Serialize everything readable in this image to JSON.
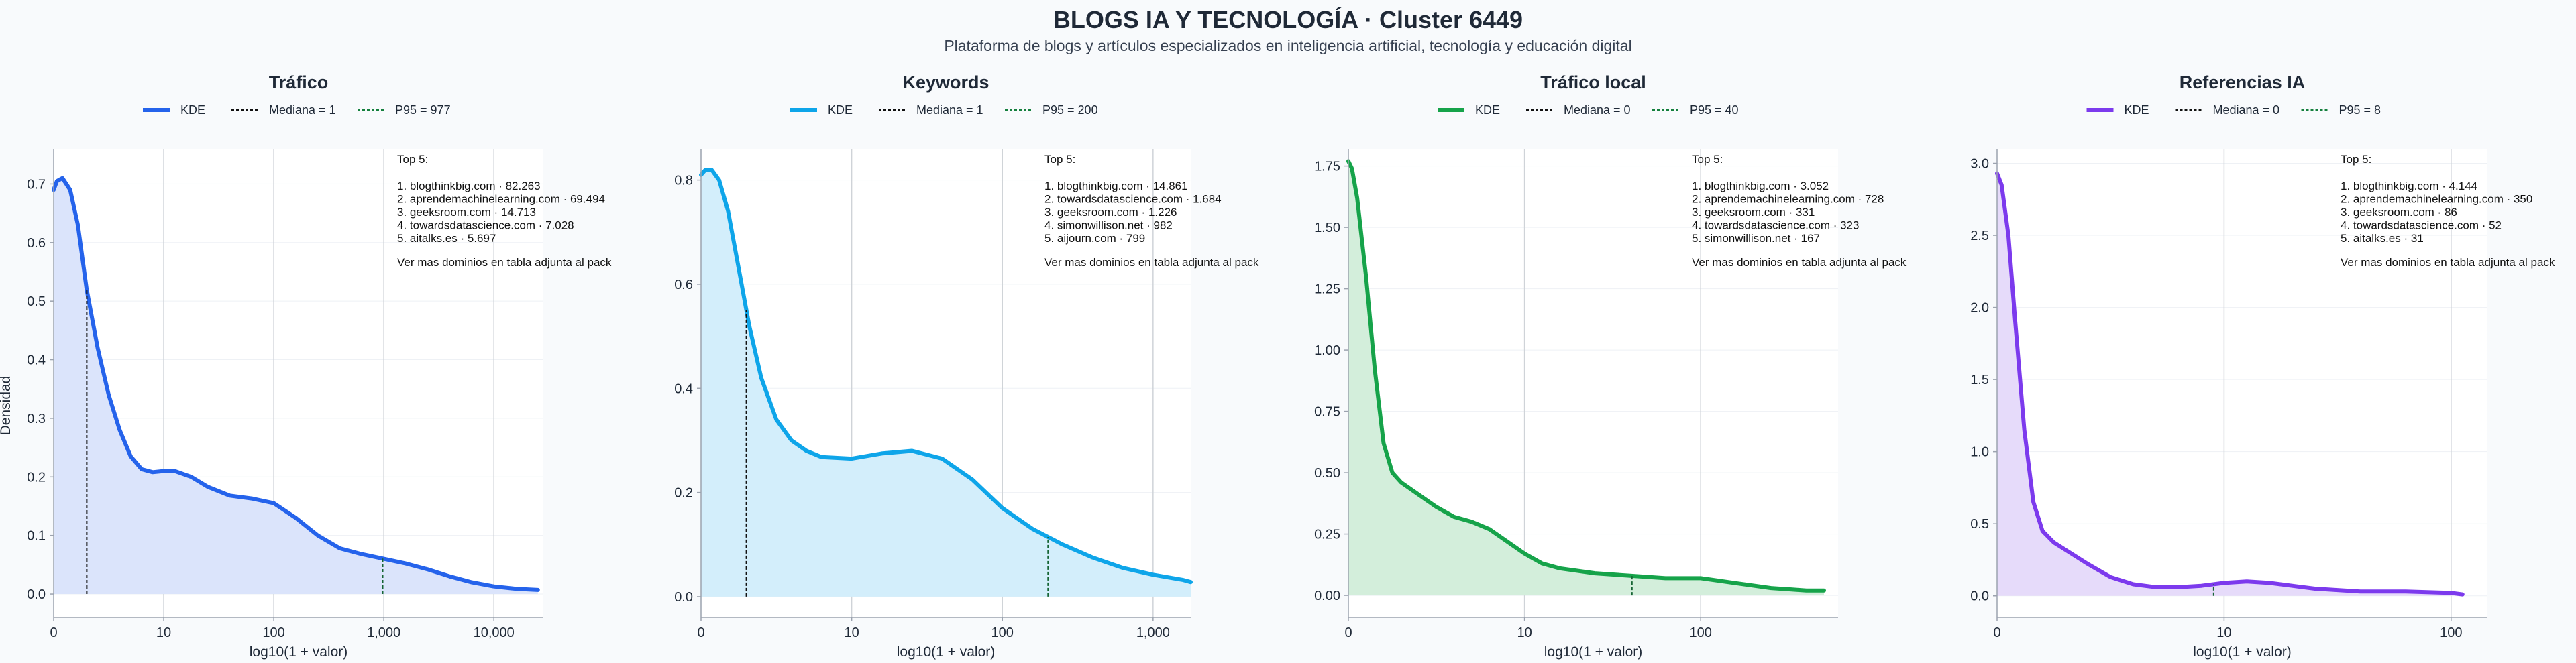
{
  "header": {
    "title": "BLOGS IA Y TECNOLOGÍA · Cluster 6449",
    "subtitle": "Plataforma de blogs y artículos especializados en inteligencia artificial, tecnología y educación digital"
  },
  "shared": {
    "xlabel": "log10(1 + valor)",
    "ylabel": "Densidad",
    "legend_kde": "KDE",
    "top_title": "Top 5:",
    "top_footer": "Ver mas dominios en tabla adjunta al pack"
  },
  "chart_data": [
    {
      "type": "area",
      "title": "Tráfico",
      "color": "#2563eb",
      "fill": "#dbe4fb",
      "legend": [
        "KDE",
        "Mediana = 1",
        "P95 = 977"
      ],
      "xlabel": "log10(1 + valor)",
      "ylabel": "Densidad",
      "xlim": [
        0,
        4.45
      ],
      "ylim": [
        -0.04,
        0.76
      ],
      "yticks": [
        0.0,
        0.1,
        0.2,
        0.3,
        0.4,
        0.5,
        0.6,
        0.7
      ],
      "yticklabels": [
        "0.0",
        "0.1",
        "0.2",
        "0.3",
        "0.4",
        "0.5",
        "0.6",
        "0.7"
      ],
      "xticks": [
        0,
        1,
        2,
        3,
        4
      ],
      "xticklabels": [
        "0",
        "10",
        "100",
        "1,000",
        "10,000"
      ],
      "median_x": 0.301,
      "p95_x": 2.99,
      "x": [
        0,
        0.03,
        0.08,
        0.15,
        0.22,
        0.3,
        0.4,
        0.5,
        0.6,
        0.7,
        0.8,
        0.9,
        1.0,
        1.1,
        1.25,
        1.4,
        1.6,
        1.8,
        2.0,
        2.2,
        2.4,
        2.6,
        2.8,
        3.0,
        3.2,
        3.4,
        3.6,
        3.8,
        4.0,
        4.2,
        4.4
      ],
      "y": [
        0.69,
        0.705,
        0.71,
        0.69,
        0.63,
        0.52,
        0.42,
        0.34,
        0.28,
        0.235,
        0.213,
        0.208,
        0.21,
        0.21,
        0.2,
        0.183,
        0.168,
        0.163,
        0.155,
        0.13,
        0.1,
        0.078,
        0.068,
        0.06,
        0.052,
        0.042,
        0.03,
        0.02,
        0.013,
        0.009,
        0.007
      ],
      "top5": [
        "1. blogthinkbig.com · 82.263",
        "2. aprendemachinelearning.com · 69.494",
        "3. geeksroom.com · 14.713",
        "4. towardsdatascience.com · 7.028",
        "5. aitalks.es · 5.697"
      ]
    },
    {
      "type": "area",
      "title": "Keywords",
      "color": "#0ea5e9",
      "fill": "#d3eefb",
      "legend": [
        "KDE",
        "Mediana = 1",
        "P95 = 200"
      ],
      "xlabel": "log10(1 + valor)",
      "ylabel": "",
      "xlim": [
        0,
        3.25
      ],
      "ylim": [
        -0.04,
        0.86
      ],
      "yticks": [
        0.0,
        0.2,
        0.4,
        0.6,
        0.8
      ],
      "yticklabels": [
        "0.0",
        "0.2",
        "0.4",
        "0.6",
        "0.8"
      ],
      "xticks": [
        0,
        1,
        2,
        3
      ],
      "xticklabels": [
        "0",
        "10",
        "100",
        "1,000"
      ],
      "median_x": 0.301,
      "p95_x": 2.303,
      "x": [
        0,
        0.03,
        0.07,
        0.12,
        0.18,
        0.25,
        0.32,
        0.4,
        0.5,
        0.6,
        0.7,
        0.8,
        1.0,
        1.2,
        1.4,
        1.6,
        1.8,
        2.0,
        2.2,
        2.4,
        2.6,
        2.8,
        3.0,
        3.2,
        3.25
      ],
      "y": [
        0.81,
        0.82,
        0.82,
        0.8,
        0.74,
        0.63,
        0.52,
        0.42,
        0.34,
        0.3,
        0.28,
        0.268,
        0.265,
        0.275,
        0.28,
        0.265,
        0.225,
        0.17,
        0.13,
        0.1,
        0.075,
        0.055,
        0.042,
        0.032,
        0.028
      ],
      "top5": [
        "1. blogthinkbig.com · 14.861",
        "2. towardsdatascience.com · 1.684",
        "3. geeksroom.com · 1.226",
        "4. simonwillison.net · 982",
        "5. aijourn.com · 799"
      ]
    },
    {
      "type": "area",
      "title": "Tráfico local",
      "color": "#16a34a",
      "fill": "#d3eedb",
      "legend": [
        "KDE",
        "Mediana = 0",
        "P95 = 40"
      ],
      "xlabel": "log10(1 + valor)",
      "ylabel": "",
      "xlim": [
        0,
        2.78
      ],
      "ylim": [
        -0.09,
        1.82
      ],
      "yticks": [
        0.0,
        0.25,
        0.5,
        0.75,
        1.0,
        1.25,
        1.5,
        1.75
      ],
      "yticklabels": [
        "0.00",
        "0.25",
        "0.50",
        "0.75",
        "1.00",
        "1.25",
        "1.50",
        "1.75"
      ],
      "xticks": [
        0,
        1,
        2
      ],
      "xticklabels": [
        "0",
        "10",
        "100"
      ],
      "median_x": 0,
      "p95_x": 1.61,
      "x": [
        0,
        0.02,
        0.05,
        0.1,
        0.15,
        0.2,
        0.25,
        0.3,
        0.4,
        0.5,
        0.6,
        0.7,
        0.8,
        0.9,
        1.0,
        1.1,
        1.2,
        1.4,
        1.6,
        1.8,
        2.0,
        2.2,
        2.4,
        2.6,
        2.7
      ],
      "y": [
        1.77,
        1.74,
        1.62,
        1.3,
        0.92,
        0.62,
        0.5,
        0.46,
        0.41,
        0.36,
        0.32,
        0.3,
        0.27,
        0.22,
        0.17,
        0.13,
        0.11,
        0.09,
        0.08,
        0.07,
        0.07,
        0.05,
        0.03,
        0.02,
        0.02
      ],
      "top5": [
        "1. blogthinkbig.com · 3.052",
        "2. aprendemachinelearning.com · 728",
        "3. geeksroom.com · 331",
        "4. towardsdatascience.com · 323",
        "5. simonwillison.net · 167"
      ]
    },
    {
      "type": "area",
      "title": "Referencias IA",
      "color": "#7c3aed",
      "fill": "#e6dbfa",
      "legend": [
        "KDE",
        "Mediana = 0",
        "P95 = 8"
      ],
      "xlabel": "log10(1 + valor)",
      "ylabel": "",
      "xlim": [
        0,
        2.16
      ],
      "ylim": [
        -0.15,
        3.1
      ],
      "yticks": [
        0.0,
        0.5,
        1.0,
        1.5,
        2.0,
        2.5,
        3.0
      ],
      "yticklabels": [
        "0.0",
        "0.5",
        "1.0",
        "1.5",
        "2.0",
        "2.5",
        "3.0"
      ],
      "xticks": [
        0,
        1,
        2
      ],
      "xticklabels": [
        "0",
        "10",
        "100"
      ],
      "median_x": 0,
      "p95_x": 0.954,
      "x": [
        0,
        0.02,
        0.05,
        0.08,
        0.12,
        0.16,
        0.2,
        0.25,
        0.3,
        0.4,
        0.5,
        0.6,
        0.7,
        0.8,
        0.9,
        1.0,
        1.1,
        1.2,
        1.3,
        1.4,
        1.6,
        1.8,
        2.0,
        2.05
      ],
      "y": [
        2.93,
        2.85,
        2.5,
        1.9,
        1.15,
        0.65,
        0.45,
        0.37,
        0.32,
        0.22,
        0.13,
        0.08,
        0.06,
        0.06,
        0.07,
        0.09,
        0.1,
        0.09,
        0.07,
        0.05,
        0.03,
        0.03,
        0.02,
        0.01
      ],
      "top5": [
        "1. blogthinkbig.com · 4.144",
        "2. aprendemachinelearning.com · 350",
        "3. geeksroom.com · 86",
        "4. towardsdatascience.com · 52",
        "5. aitalks.es · 31"
      ]
    }
  ]
}
